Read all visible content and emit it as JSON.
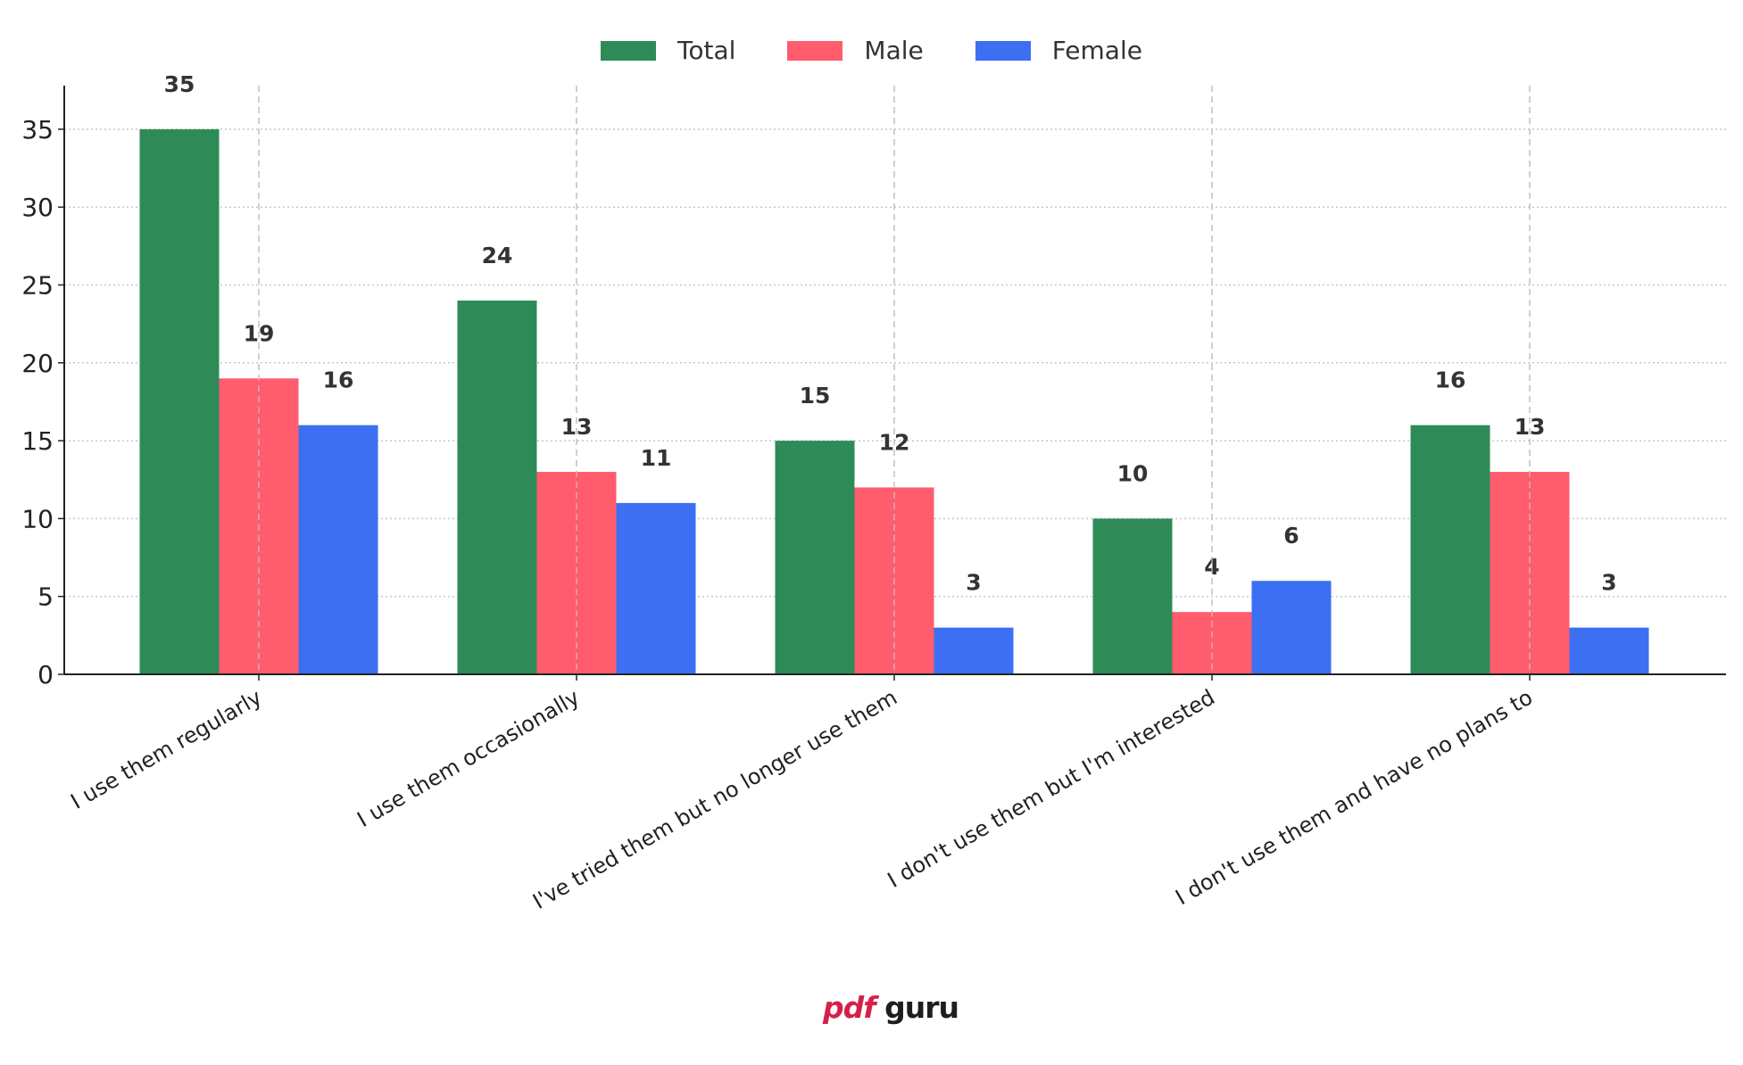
{
  "chart_data": {
    "type": "bar",
    "categories": [
      "I use them regularly",
      "I use them occasionally",
      "I've tried them but no longer use them",
      "I don't use them but I'm interested",
      "I don't use them and have no plans to"
    ],
    "series": [
      {
        "name": "Total",
        "color": "#2e8b57",
        "values": [
          35,
          24,
          15,
          10,
          16
        ]
      },
      {
        "name": "Male",
        "color": "#ff5c6e",
        "values": [
          19,
          13,
          12,
          4,
          13
        ]
      },
      {
        "name": "Female",
        "color": "#3c6ff2",
        "values": [
          16,
          11,
          3,
          6,
          3
        ]
      }
    ],
    "yticks": [
      0,
      5,
      10,
      15,
      20,
      25,
      30,
      35
    ],
    "ylim": [
      0,
      37.8
    ],
    "grid": true,
    "legend_position": "top-center",
    "data_labels": true
  },
  "logo": {
    "pdf": "pdf",
    "guru": "guru"
  }
}
